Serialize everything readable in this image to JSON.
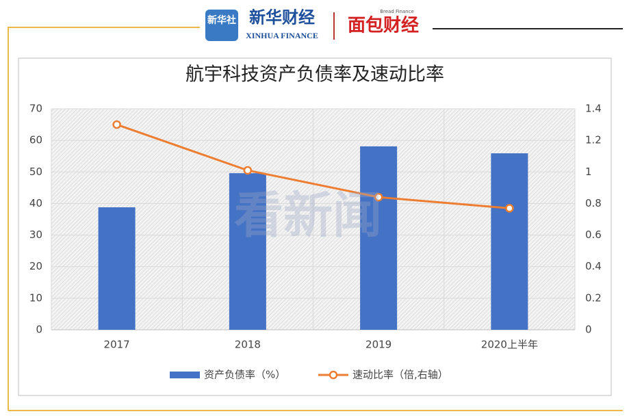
{
  "header": {
    "logo_1": "新华社",
    "logo_2": "新华财经",
    "logo_2_sub": "XINHUA FINANCE",
    "logo_3": "面包财经",
    "logo_3_sub": "Bread Finance"
  },
  "watermark": "看新闻",
  "chart_data": {
    "type": "bar_line",
    "title": "航宇科技资产负债率及速动比率",
    "categories": [
      "2017",
      "2018",
      "2019",
      "2020上半年"
    ],
    "series": [
      {
        "name": "资产负债率（%）",
        "color": "#4472c4",
        "type": "bar",
        "values": [
          38.8,
          49.6,
          58.1,
          55.9
        ]
      },
      {
        "name": "速动比率（倍,右轴）",
        "color": "#ed7d31",
        "type": "line",
        "axis": "y2",
        "values": [
          1.3,
          1.01,
          0.84,
          0.77
        ]
      }
    ],
    "ylim": [
      0,
      70
    ],
    "yticks": [
      0,
      10,
      20,
      30,
      40,
      50,
      60,
      70
    ],
    "y2lim": [
      0,
      1.4
    ],
    "y2ticks": [
      0,
      0.2,
      0.4,
      0.6,
      0.8,
      1,
      1.2,
      1.4
    ],
    "grid": true,
    "legend": "bottom"
  }
}
